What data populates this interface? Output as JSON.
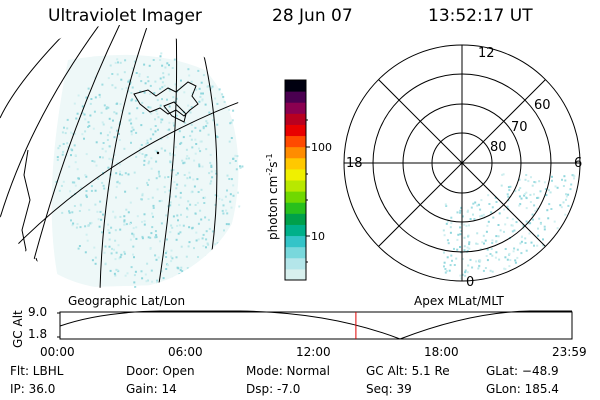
{
  "header": {
    "instrument": "Ultraviolet Imager",
    "date": "28 Jun 07",
    "time": "13:52:17 UT"
  },
  "colorbar": {
    "unit_label": "photon cm",
    "unit_exp1": "-2",
    "unit_s": "s",
    "unit_exp2": "-1",
    "tick_100": "100",
    "tick_10": "10",
    "colors": [
      "#d8f0ee",
      "#b4e6ea",
      "#79d8dc",
      "#34c4c8",
      "#00b08a",
      "#00a04a",
      "#28c01c",
      "#70d800",
      "#b8e800",
      "#f0f000",
      "#ffc800",
      "#ff8c00",
      "#ff4a00",
      "#e80000",
      "#b80020",
      "#8a0050",
      "#4a0050",
      "#000010"
    ]
  },
  "polar": {
    "mlt_12": "12",
    "mlt_18": "18",
    "mlt_6": "6",
    "mlt_0": "0",
    "lat_60": "60",
    "lat_70": "70",
    "lat_80": "80"
  },
  "panel_titles": {
    "left": "Geographic Lat/Lon",
    "right": "Apex MLat/MLT"
  },
  "altitude_strip": {
    "ylabel": "GC Alt",
    "y_top": "9.0",
    "y_bottom": "1.8",
    "x_ticks": [
      "00:00",
      "06:00",
      "12:00",
      "18:00",
      "23:59"
    ],
    "current_time_fraction": 0.5779,
    "marker_color": "#e00000"
  },
  "info": {
    "filter": "Flt: LBHL",
    "ip": "IP: 36.0",
    "door": "Door: Open",
    "gain": "Gain: 14",
    "mode": "Mode: Normal",
    "dsp": "Dsp:    -7.0",
    "gc_alt": "GC Alt: 5.1 Re",
    "seq": "Seq: 39",
    "glat": "GLat: −48.9",
    "glon": "GLon: 185.4"
  }
}
